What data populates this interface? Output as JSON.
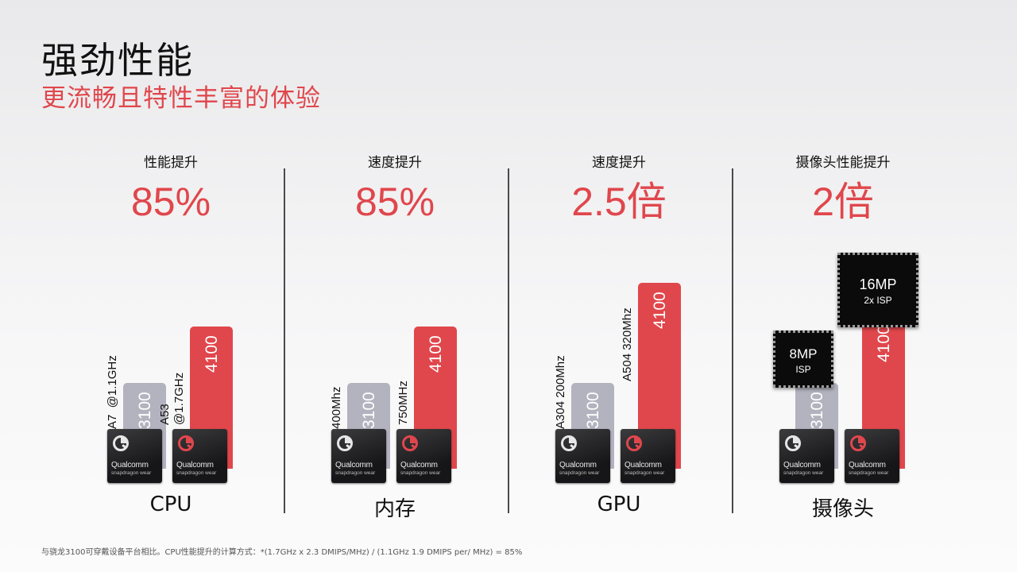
{
  "title": "强劲性能",
  "subtitle": "更流畅且特性丰富的体验",
  "colors": {
    "accent": "#e0474c",
    "old_bar": "#b2b3bf",
    "chip": "#1c1c1e"
  },
  "chip_text": {
    "brand": "Qualcomm",
    "sub": "snapdragon wear"
  },
  "footnote": "与骁龙3100可穿戴设备平台相比。CPU性能提升的计算方式：*(1.7GHz x 2.3 DMIPS/MHz) / (1.1GHz  1.9 DMIPS per/ MHz) = 85%",
  "sensors": [
    {
      "big": "8MP",
      "small": "ISP"
    },
    {
      "big": "16MP",
      "small": "2x ISP"
    }
  ],
  "chart_data": [
    {
      "type": "bar",
      "category": "CPU",
      "metric_label": "性能提升",
      "metric_value": "85%",
      "series": [
        {
          "name": "3100",
          "value": 1.0,
          "annotation": "A7  @1.1GHz"
        },
        {
          "name": "4100",
          "value": 1.85,
          "annotation": "A53\n@1.7GHz"
        }
      ]
    },
    {
      "type": "bar",
      "category": "内存",
      "metric_label": "速度提升",
      "metric_value": "85%",
      "series": [
        {
          "name": "3100",
          "value": 1.0,
          "annotation": "400Mhz"
        },
        {
          "name": "4100",
          "value": 1.85,
          "annotation": "750MHz"
        }
      ]
    },
    {
      "type": "bar",
      "category": "GPU",
      "metric_label": "速度提升",
      "metric_value": "2.5倍",
      "series": [
        {
          "name": "3100",
          "value": 1.0,
          "annotation": "A304 200Mhz"
        },
        {
          "name": "4100",
          "value": 2.5,
          "annotation": "A504 320Mhz"
        }
      ]
    },
    {
      "type": "bar",
      "category": "摄像头",
      "metric_label": "摄像头性能提升",
      "metric_value": "2倍",
      "series": [
        {
          "name": "3100",
          "value": 1.0,
          "annotation": ""
        },
        {
          "name": "4100",
          "value": 2.0,
          "annotation": ""
        }
      ]
    }
  ]
}
